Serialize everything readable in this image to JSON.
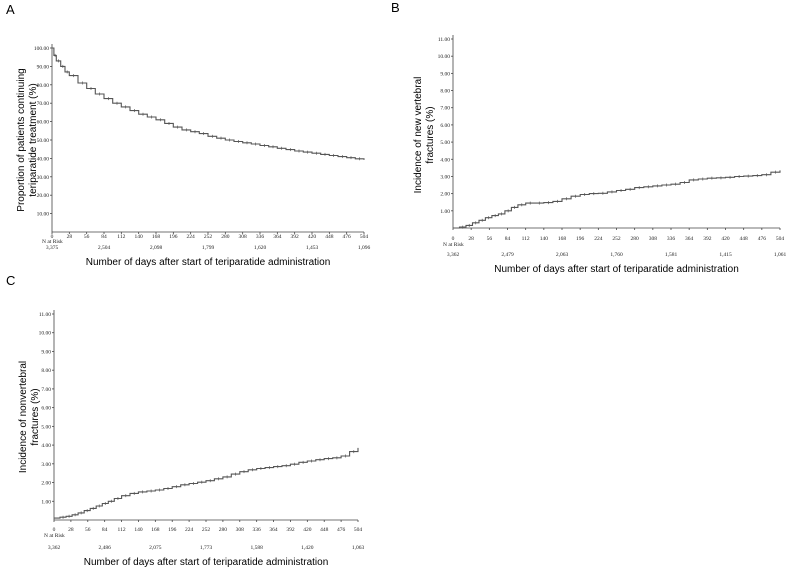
{
  "chart_data": [
    {
      "type": "line",
      "panel": "A",
      "ylabel_lines": [
        "Proportion of patients continuing",
        "teriparatide treatment (%)"
      ],
      "xlabel": "Number of days after start of teriparatide administration",
      "xlim": [
        0,
        504
      ],
      "ylim": [
        0,
        100
      ],
      "yticks": [
        "10.00",
        "20.00",
        "30.00",
        "40.00",
        "50.00",
        "60.00",
        "70.00",
        "80.00",
        "90.00",
        "100.00"
      ],
      "xticks": [
        "0",
        "28",
        "56",
        "84",
        "112",
        "140",
        "168",
        "196",
        "224",
        "252",
        "280",
        "308",
        "336",
        "364",
        "392",
        "420",
        "448",
        "476",
        "504"
      ],
      "risk_label": "N at Risk",
      "risk_days": [
        0,
        84,
        168,
        252,
        336,
        420,
        504
      ],
      "risk_values": [
        "3,375",
        "2,504",
        "2,098",
        "1,799",
        "1,620",
        "1,453",
        "1,096"
      ],
      "series": [
        {
          "name": "Continuing treatment",
          "x": [
            0,
            3,
            7,
            14,
            21,
            28,
            42,
            56,
            70,
            84,
            98,
            112,
            126,
            140,
            154,
            168,
            182,
            196,
            210,
            224,
            238,
            252,
            266,
            280,
            294,
            308,
            322,
            336,
            350,
            364,
            378,
            392,
            406,
            420,
            434,
            448,
            462,
            476,
            490,
            504
          ],
          "y": [
            100,
            96,
            93,
            90,
            87,
            85,
            81,
            78,
            75,
            72.5,
            70,
            68,
            66,
            64,
            62.5,
            61,
            59,
            57,
            55.5,
            54.5,
            53.5,
            52,
            51,
            50,
            49.2,
            48.5,
            47.8,
            47,
            46.3,
            45.5,
            44.8,
            44,
            43.4,
            42.8,
            42.2,
            41.6,
            41,
            40.4,
            39.8,
            39.2
          ]
        }
      ]
    },
    {
      "type": "line",
      "panel": "B",
      "ylabel_lines": [
        "Incidence of new vertebral",
        "fractures (%)"
      ],
      "xlabel": "Number of days after start of teriparatide administration",
      "xlim": [
        0,
        504
      ],
      "ylim": [
        0,
        11
      ],
      "yticks": [
        "1.00",
        "2.00",
        "3.00",
        "4.00",
        "5.00",
        "6.00",
        "7.00",
        "8.00",
        "9.00",
        "10.00",
        "11.00"
      ],
      "xticks": [
        "0",
        "28",
        "56",
        "84",
        "112",
        "140",
        "168",
        "196",
        "224",
        "252",
        "280",
        "308",
        "336",
        "364",
        "392",
        "420",
        "448",
        "476",
        "504"
      ],
      "risk_label": "N at Risk",
      "risk_days": [
        0,
        84,
        168,
        252,
        336,
        420,
        504
      ],
      "risk_values": [
        "3,362",
        "2,479",
        "2,063",
        "1,760",
        "1,581",
        "1,415",
        "1,061"
      ],
      "series": [
        {
          "name": "New vertebral fractures",
          "x": [
            0,
            10,
            20,
            30,
            40,
            50,
            60,
            70,
            80,
            90,
            100,
            112,
            126,
            140,
            154,
            168,
            182,
            196,
            210,
            224,
            238,
            252,
            266,
            280,
            294,
            308,
            322,
            336,
            350,
            364,
            378,
            392,
            406,
            420,
            434,
            448,
            462,
            476,
            490,
            504
          ],
          "y": [
            0,
            0.05,
            0.15,
            0.3,
            0.45,
            0.6,
            0.72,
            0.82,
            1.0,
            1.2,
            1.35,
            1.45,
            1.45,
            1.48,
            1.55,
            1.7,
            1.85,
            1.95,
            2.0,
            2.02,
            2.1,
            2.18,
            2.25,
            2.35,
            2.4,
            2.45,
            2.5,
            2.55,
            2.65,
            2.8,
            2.85,
            2.9,
            2.92,
            2.95,
            3.0,
            3.02,
            3.05,
            3.1,
            3.25,
            3.35
          ]
        }
      ]
    },
    {
      "type": "line",
      "panel": "C",
      "ylabel_lines": [
        "Incidence of nonvertebral",
        "fractures (%)"
      ],
      "xlabel": "Number of days after start of teriparatide administration",
      "xlim": [
        0,
        504
      ],
      "ylim": [
        0,
        11
      ],
      "yticks": [
        "1.00",
        "2.00",
        "3.00",
        "4.00",
        "5.00",
        "6.00",
        "7.00",
        "8.00",
        "9.00",
        "10.00",
        "11.00"
      ],
      "xticks": [
        "0",
        "28",
        "56",
        "84",
        "112",
        "140",
        "168",
        "196",
        "224",
        "252",
        "280",
        "308",
        "336",
        "364",
        "392",
        "420",
        "448",
        "476",
        "504"
      ],
      "risk_label": "N at Risk",
      "risk_days": [
        0,
        84,
        168,
        252,
        336,
        420,
        504
      ],
      "risk_values": [
        "3,362",
        "2,486",
        "2,075",
        "1,773",
        "1,588",
        "1,420",
        "1,063"
      ],
      "series": [
        {
          "name": "Nonvertebral fractures",
          "x": [
            0,
            10,
            20,
            30,
            40,
            50,
            60,
            70,
            80,
            90,
            100,
            112,
            126,
            140,
            154,
            168,
            182,
            196,
            210,
            224,
            238,
            252,
            266,
            280,
            294,
            308,
            322,
            336,
            350,
            364,
            378,
            392,
            406,
            420,
            434,
            448,
            462,
            476,
            490,
            504
          ],
          "y": [
            0.1,
            0.15,
            0.2,
            0.28,
            0.38,
            0.5,
            0.62,
            0.75,
            0.88,
            1.0,
            1.15,
            1.3,
            1.42,
            1.5,
            1.55,
            1.6,
            1.68,
            1.78,
            1.88,
            1.95,
            2.02,
            2.1,
            2.2,
            2.3,
            2.45,
            2.58,
            2.68,
            2.75,
            2.8,
            2.85,
            2.9,
            2.98,
            3.08,
            3.15,
            3.22,
            3.28,
            3.32,
            3.42,
            3.65,
            3.85
          ]
        }
      ]
    }
  ]
}
